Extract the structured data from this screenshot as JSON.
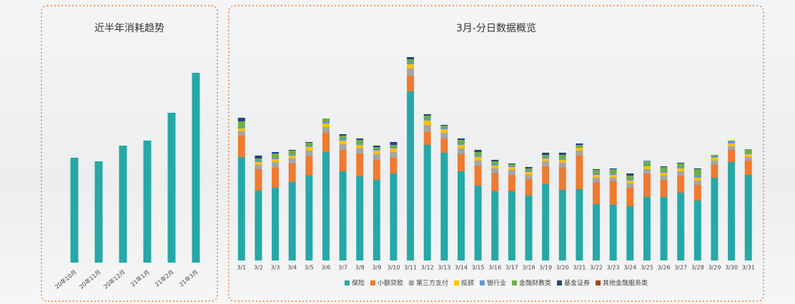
{
  "chart_data": [
    {
      "type": "bar",
      "title": "近半年消耗趋势",
      "categories": [
        "20年10月",
        "20年11月",
        "20年12月",
        "21年1月",
        "21年2月",
        "21年3月"
      ],
      "values": [
        147,
        142,
        164,
        171,
        210,
        266
      ],
      "color": "#26a8a8"
    },
    {
      "type": "stacked-bar",
      "title": "3月-分日数据概览",
      "categories": [
        "3/1",
        "3/2",
        "3/3",
        "3/4",
        "3/5",
        "3/6",
        "3/7",
        "3/8",
        "3/9",
        "3/10",
        "3/11",
        "3/12",
        "3/13",
        "3/14",
        "3/15",
        "3/16",
        "3/17",
        "3/18",
        "3/19",
        "3/20",
        "3/21",
        "3/22",
        "3/23",
        "3/24",
        "3/25",
        "3/26",
        "3/27",
        "3/28",
        "3/29",
        "3/30",
        "3/31"
      ],
      "series": [
        {
          "name": "保险",
          "color": "#26a8a8",
          "values": [
            145,
            98,
            102,
            110,
            119,
            152,
            125,
            118,
            113,
            122,
            237,
            162,
            151,
            125,
            105,
            97,
            97,
            91,
            107,
            99,
            100,
            79,
            78,
            76,
            89,
            89,
            95,
            84,
            116,
            138,
            120
          ]
        },
        {
          "name": "小额贷款",
          "color": "#ee7b30",
          "values": [
            30,
            30,
            28,
            26,
            27,
            27,
            30,
            32,
            28,
            22,
            22,
            18,
            20,
            24,
            28,
            25,
            23,
            23,
            25,
            31,
            47,
            31,
            33,
            26,
            33,
            24,
            24,
            22,
            18,
            17,
            20
          ]
        },
        {
          "name": "第三方支付",
          "color": "#a5a5a5",
          "values": [
            6,
            6,
            8,
            7,
            8,
            8,
            8,
            7,
            8,
            8,
            10,
            10,
            8,
            8,
            7,
            7,
            7,
            6,
            7,
            7,
            7,
            6,
            5,
            6,
            6,
            6,
            6,
            6,
            6,
            5,
            5
          ]
        },
        {
          "name": "投顾",
          "color": "#ffc000",
          "values": [
            4,
            4,
            4,
            4,
            5,
            5,
            5,
            5,
            5,
            5,
            6,
            6,
            5,
            5,
            5,
            4,
            4,
            4,
            4,
            4,
            4,
            4,
            4,
            4,
            4,
            4,
            4,
            4,
            4,
            4,
            4
          ]
        },
        {
          "name": "银行业",
          "color": "#5b9bd5",
          "values": [
            2,
            2,
            2,
            2,
            2,
            2,
            3,
            2,
            2,
            2,
            3,
            3,
            2,
            2,
            2,
            2,
            2,
            2,
            2,
            2,
            1,
            2,
            2,
            2,
            2,
            2,
            2,
            2,
            2,
            2,
            1
          ]
        },
        {
          "name": "金融财教类",
          "color": "#70ad47",
          "values": [
            8,
            3,
            6,
            5,
            4,
            5,
            4,
            5,
            3,
            3,
            4,
            4,
            3,
            5,
            5,
            4,
            2,
            3,
            3,
            5,
            3,
            5,
            6,
            5,
            6,
            6,
            5,
            10,
            2,
            2,
            6
          ]
        },
        {
          "name": "基金证券",
          "color": "#264478",
          "values": [
            5,
            4,
            2,
            1,
            1,
            0,
            2,
            2,
            2,
            4,
            3,
            2,
            1,
            2,
            3,
            2,
            1,
            2,
            3,
            3,
            2,
            1,
            1,
            3,
            0,
            1,
            1,
            1,
            0,
            0,
            0
          ]
        },
        {
          "name": "其他金融服务类",
          "color": "#9e480e",
          "values": [
            0,
            0,
            0,
            0,
            0,
            0,
            0,
            0,
            0,
            0,
            0,
            0,
            0,
            0,
            0,
            0,
            0,
            0,
            0,
            0,
            0,
            0,
            0,
            0,
            0,
            0,
            0,
            0,
            0,
            0,
            0
          ]
        }
      ]
    }
  ]
}
